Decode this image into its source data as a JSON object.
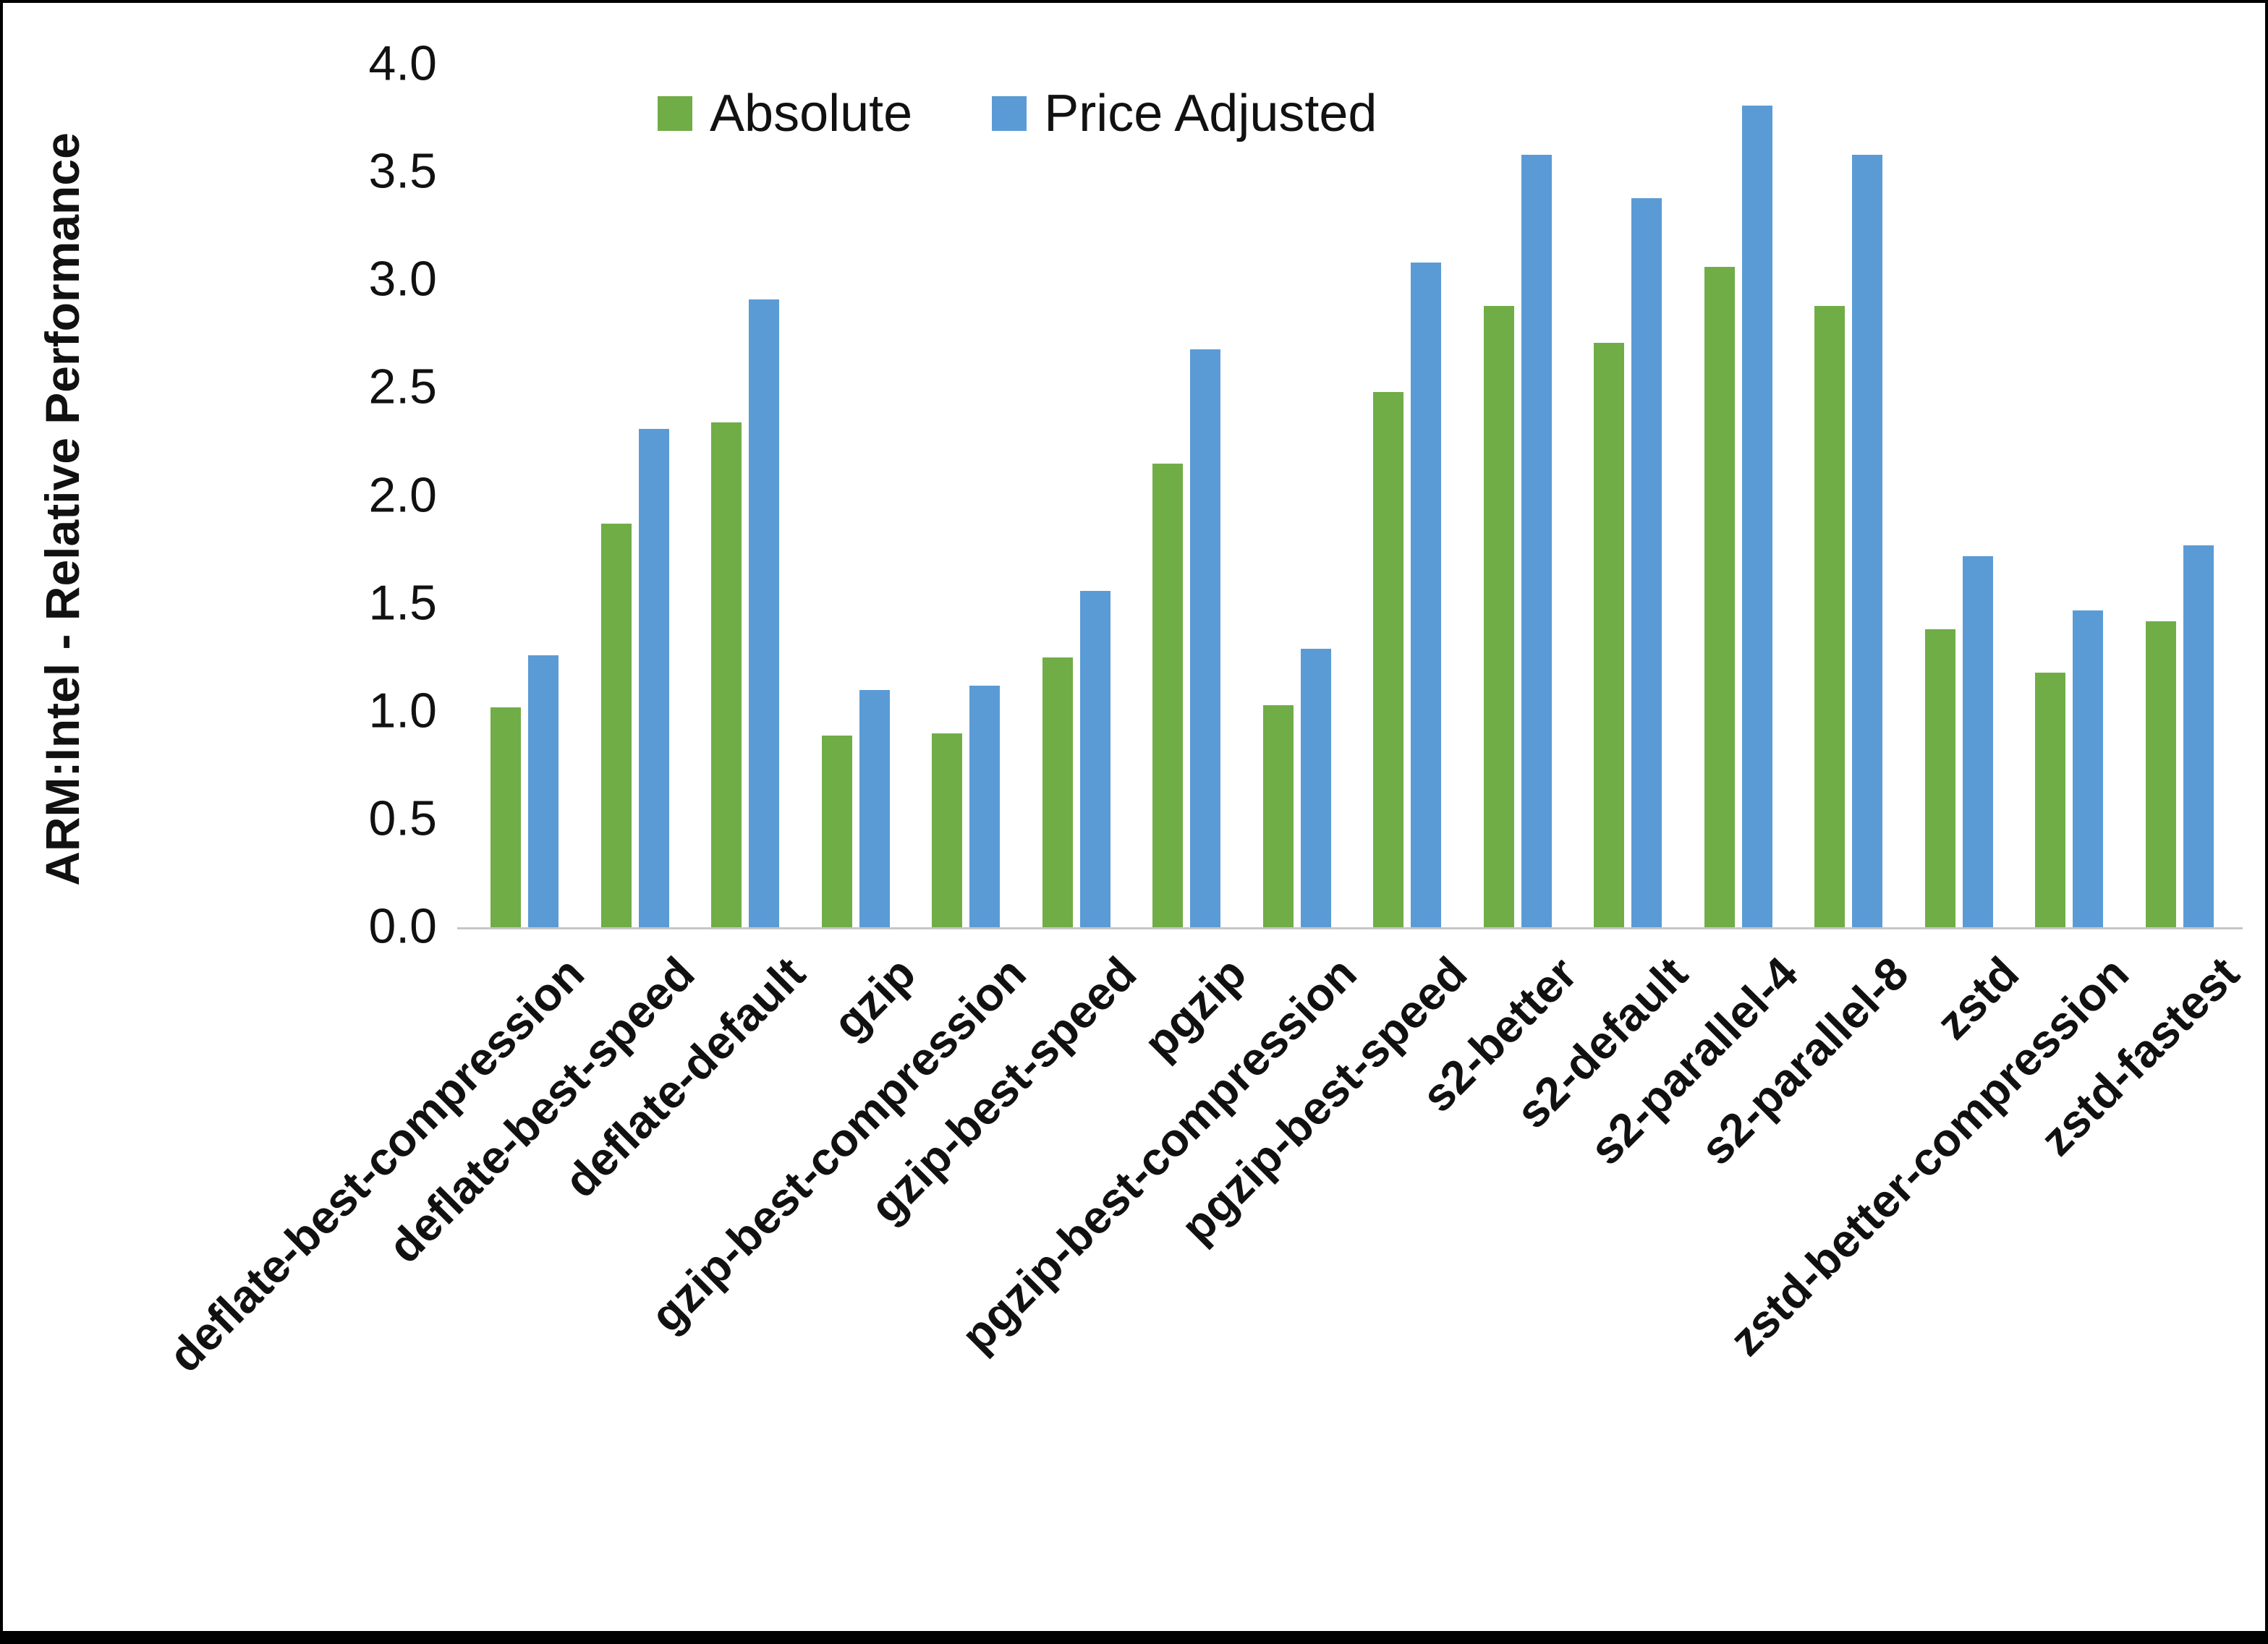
{
  "chart_data": {
    "type": "bar",
    "title": "",
    "xlabel": "",
    "ylabel": "ARM:Intel - Relative Performance",
    "ylim": [
      0,
      4
    ],
    "ytick_step": 0.5,
    "yticks": [
      "0.0",
      "0.5",
      "1.0",
      "1.5",
      "2.0",
      "2.5",
      "3.0",
      "3.5",
      "4.0"
    ],
    "grid": false,
    "legend_position": "top-center-inside",
    "categories": [
      "deflate-best-compression",
      "deflate-best-speed",
      "deflate-default",
      "gzip",
      "gzip-best-compression",
      "gzip-best-speed",
      "pgzip",
      "pgzip-best-compression",
      "pgzip-best-speed",
      "s2-better",
      "s2-default",
      "s2-parallel-4",
      "s2-parallel-8",
      "zstd",
      "zstd-better-compression",
      "zstd-fastest"
    ],
    "series": [
      {
        "name": "Absolute",
        "color": "#70AD47",
        "values": [
          1.02,
          1.87,
          2.34,
          0.89,
          0.9,
          1.25,
          2.15,
          1.03,
          2.48,
          2.88,
          2.71,
          3.06,
          2.88,
          1.38,
          1.18,
          1.42
        ]
      },
      {
        "name": "Price Adjusted",
        "color": "#5B9BD5",
        "values": [
          1.26,
          2.31,
          2.91,
          1.1,
          1.12,
          1.56,
          2.68,
          1.29,
          3.08,
          3.58,
          3.38,
          3.81,
          3.58,
          1.72,
          1.47,
          1.77
        ]
      }
    ]
  },
  "colors": {
    "absolute_bar": "#70AD47",
    "price_adjusted_bar": "#5B9BD5",
    "axis_line": "#c6c6c6",
    "text": "#111111",
    "frame_border": "#000000"
  }
}
